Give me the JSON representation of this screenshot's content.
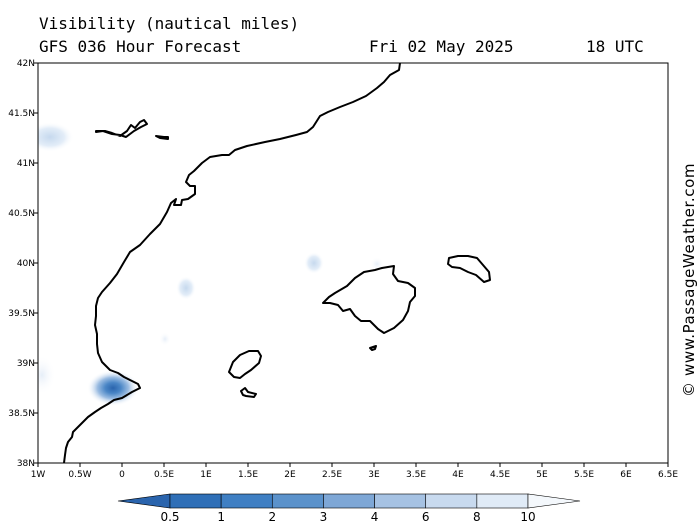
{
  "header": {
    "title": "Visibility (nautical miles)",
    "subtitle": "GFS 036 Hour Forecast",
    "date": "Fri 02 May 2025",
    "time": "18 UTC"
  },
  "credit": "© www.PassageWeather.com",
  "map": {
    "lon_range": [
      -1,
      6.5
    ],
    "lat_range": [
      38,
      42
    ],
    "x_ticks": [
      {
        "lon": -1,
        "label": "1W"
      },
      {
        "lon": -0.5,
        "label": "0.5W"
      },
      {
        "lon": 0,
        "label": "0"
      },
      {
        "lon": 0.5,
        "label": "0.5E"
      },
      {
        "lon": 1,
        "label": "1E"
      },
      {
        "lon": 1.5,
        "label": "1.5E"
      },
      {
        "lon": 2,
        "label": "2E"
      },
      {
        "lon": 2.5,
        "label": "2.5E"
      },
      {
        "lon": 3,
        "label": "3E"
      },
      {
        "lon": 3.5,
        "label": "3.5E"
      },
      {
        "lon": 4,
        "label": "4E"
      },
      {
        "lon": 4.5,
        "label": "4.5E"
      },
      {
        "lon": 5,
        "label": "5E"
      },
      {
        "lon": 5.5,
        "label": "5.5E"
      },
      {
        "lon": 6,
        "label": "6E"
      },
      {
        "lon": 6.5,
        "label": "6.5E"
      }
    ],
    "y_ticks": [
      {
        "lat": 42,
        "label": "42N"
      },
      {
        "lat": 41.5,
        "label": "41.5N"
      },
      {
        "lat": 41,
        "label": "41N"
      },
      {
        "lat": 40.5,
        "label": "40.5N"
      },
      {
        "lat": 40,
        "label": "40N"
      },
      {
        "lat": 39.5,
        "label": "39.5N"
      },
      {
        "lat": 39,
        "label": "39N"
      },
      {
        "lat": 38.5,
        "label": "38.5N"
      },
      {
        "lat": 38,
        "label": "38N"
      }
    ],
    "low_visibility_areas": [
      {
        "lon": -0.08,
        "lat": 38.75,
        "min_vis_nm": 0.5
      },
      {
        "lon": -0.85,
        "lat": 41.24,
        "min_vis_nm": 8
      },
      {
        "lon": -0.9,
        "lat": 38.9,
        "min_vis_nm": 8
      },
      {
        "lon": 0.75,
        "lat": 39.75,
        "min_vis_nm": 8
      },
      {
        "lon": 0.52,
        "lat": 39.24,
        "min_vis_nm": 8
      },
      {
        "lon": 2.25,
        "lat": 40.0,
        "min_vis_nm": 8
      },
      {
        "lon": 3.0,
        "lat": 40.0,
        "min_vis_nm": 10
      }
    ]
  },
  "legend": {
    "levels": [
      {
        "value": "0.5",
        "color": "#2f6fb7"
      },
      {
        "value": "1",
        "color": "#3f7fc3"
      },
      {
        "value": "2",
        "color": "#5b92cb"
      },
      {
        "value": "3",
        "color": "#7ea7d6"
      },
      {
        "value": "4",
        "color": "#a6c2e3"
      },
      {
        "value": "6",
        "color": "#c8daef"
      },
      {
        "value": "8",
        "color": "#e0ebf7"
      },
      {
        "value": "10",
        "color": "#f4f8fc"
      }
    ],
    "low_color": "#2a64ad",
    "high_color": "#ffffff"
  }
}
